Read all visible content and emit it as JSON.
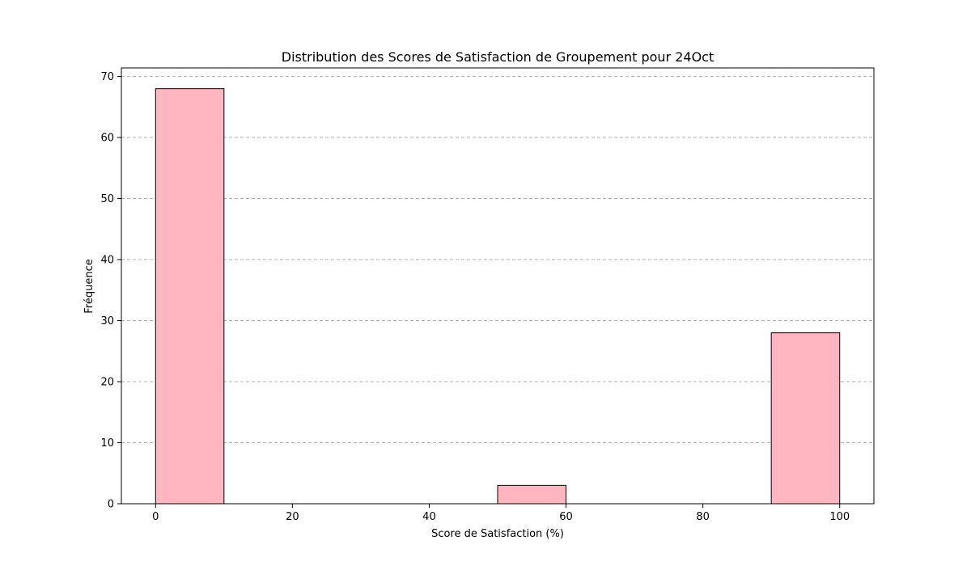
{
  "chart_data": {
    "type": "bar",
    "title": "Distribution des Scores de Satisfaction de Groupement pour 24Oct",
    "xlabel": "Score de Satisfaction (%)",
    "ylabel": "Fréquence",
    "xlim": [
      -5,
      105
    ],
    "ylim": [
      0,
      71.4
    ],
    "x_ticks": [
      0,
      20,
      40,
      60,
      80,
      100
    ],
    "y_ticks": [
      0,
      10,
      20,
      30,
      40,
      50,
      60,
      70
    ],
    "grid": "y-dashed",
    "bins": [
      {
        "start": 0,
        "end": 10,
        "value": 68
      },
      {
        "start": 10,
        "end": 20,
        "value": 0
      },
      {
        "start": 20,
        "end": 30,
        "value": 0
      },
      {
        "start": 30,
        "end": 40,
        "value": 0
      },
      {
        "start": 40,
        "end": 50,
        "value": 0
      },
      {
        "start": 50,
        "end": 60,
        "value": 3
      },
      {
        "start": 60,
        "end": 70,
        "value": 0
      },
      {
        "start": 70,
        "end": 80,
        "value": 0
      },
      {
        "start": 80,
        "end": 90,
        "value": 0
      },
      {
        "start": 90,
        "end": 100,
        "value": 28
      }
    ],
    "colors": {
      "bar_fill": "#ffb6c1",
      "bar_edge": "#000000",
      "grid": "#b0b0b0"
    }
  }
}
